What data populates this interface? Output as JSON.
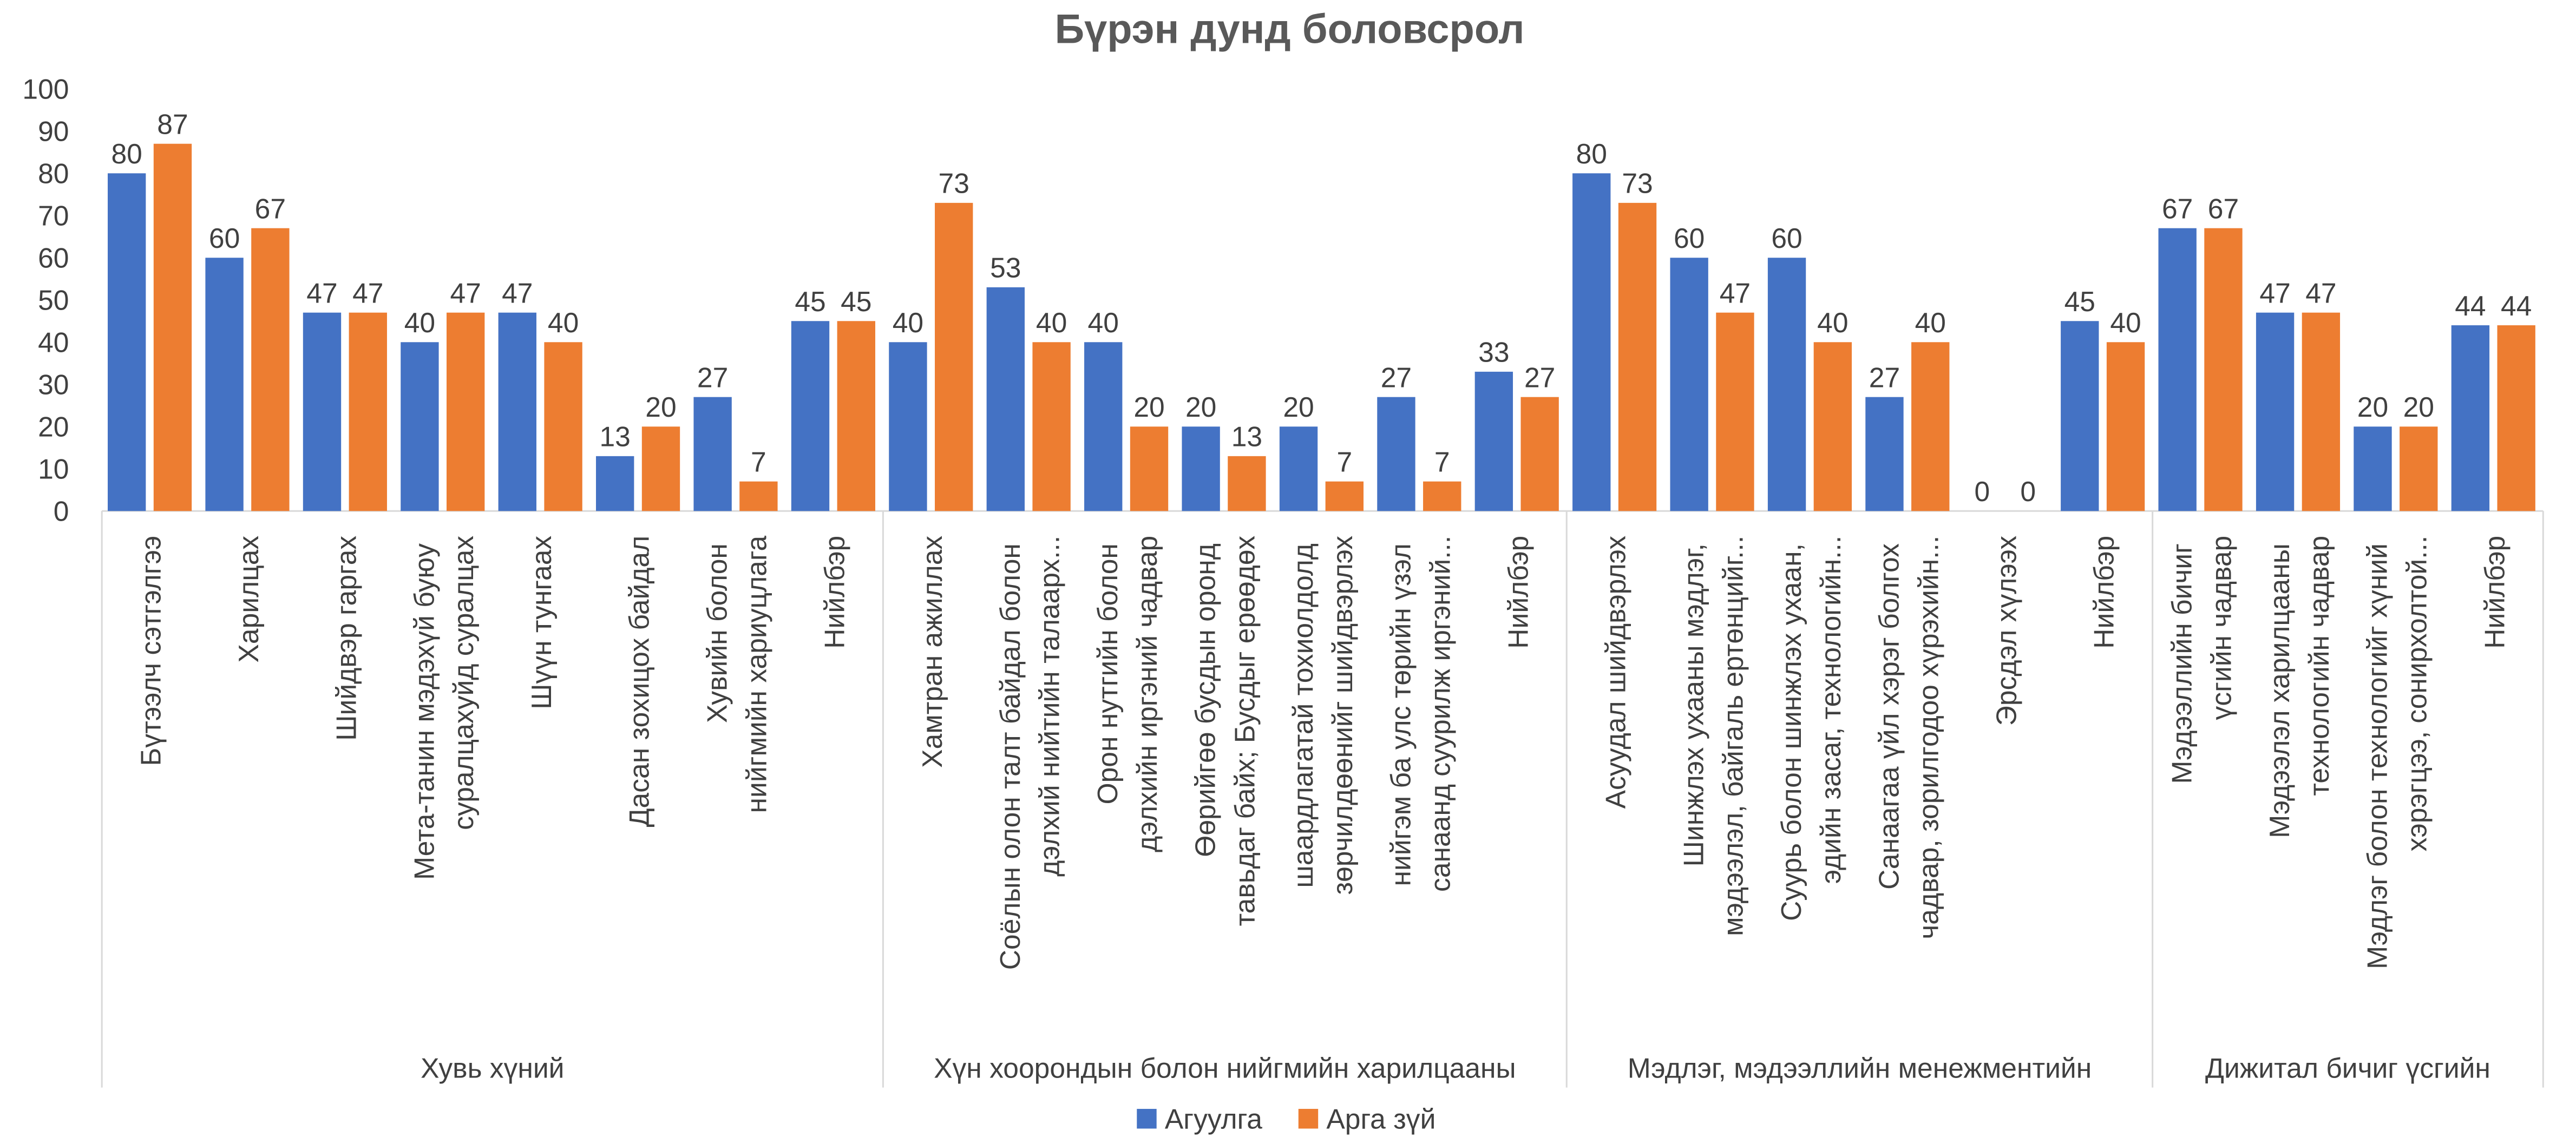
{
  "chart_data": {
    "type": "bar",
    "title": "Бүрэн дунд боловсрол",
    "groups": [
      {
        "name": "Хувь хүний",
        "categories": [
          "Бүтээлч сэтгэлгээ",
          "Харилцах",
          "Шийдвэр гаргах",
          "Мета-танин мэдэхүй буюу суралцахуйд суралцах",
          "Шүүн тунгаах",
          "Дасан зохицох байдал",
          "Хувийн болон нийгмийн хариуцлага",
          "Нийлбэр"
        ]
      },
      {
        "name": "Хүн хоорондын болон нийгмийн харилцааны",
        "categories": [
          "Хамтран ажиллах",
          "Соёлын олон талт байдал болон дэлхий нийтийн талаарх...",
          "Орон нутгийн болон дэлхийн иргэний чадвар",
          "Өөрийгөө бусдын оронд тавьдаг байх; Бусдыг ерөөдөх",
          "шаардлагатай тохиолдолд зөрчилдөөнийг шийдвэрлэх",
          "нийгэм ба улс төрийн үзэл санаанд суурилж иргэний...",
          "Нийлбэр"
        ]
      },
      {
        "name": "Мэдлэг, мэдээллийн менежментийн",
        "categories": [
          "Асуудал шийдвэрлэх",
          "Шинжлэх ухааны мэдлэг, мэдээлэл, байгаль ертөнцийг...",
          "Суурь болон шинжлэх ухаан, эдийн засаг, технологийн...",
          "Санаагаа үйл хэрэг болгох чадвар, зорилгодоо хүрэхийн...",
          "Эрсдэл хүлээх",
          "Нийлбэр"
        ]
      },
      {
        "name": "Дижитал бичиг үсгийн",
        "categories": [
          "Мэдээллийн бичиг үсгийн чадвар",
          "Мэдээлэл харилцааны технологийн чадвар",
          "Мэдлэг болон технологийг хүний хэрэгцээ, сонирхолтой...",
          "Нийлбэр"
        ]
      }
    ],
    "series": [
      {
        "name": "Агуулга",
        "color": "#4472c4",
        "values": [
          80,
          60,
          47,
          40,
          47,
          13,
          27,
          45,
          40,
          53,
          40,
          20,
          20,
          27,
          33,
          80,
          60,
          60,
          27,
          0,
          45,
          67,
          47,
          20,
          44
        ]
      },
      {
        "name": "Арга зүй",
        "color": "#ed7d31",
        "values": [
          87,
          67,
          47,
          47,
          40,
          20,
          7,
          45,
          73,
          40,
          20,
          13,
          7,
          7,
          27,
          73,
          47,
          40,
          40,
          0,
          40,
          67,
          47,
          20,
          44
        ]
      }
    ],
    "ylim": [
      0,
      100
    ],
    "yticks": [
      0,
      10,
      20,
      30,
      40,
      50,
      60,
      70,
      80,
      90,
      100
    ],
    "grid": false,
    "legend": "bottom"
  }
}
